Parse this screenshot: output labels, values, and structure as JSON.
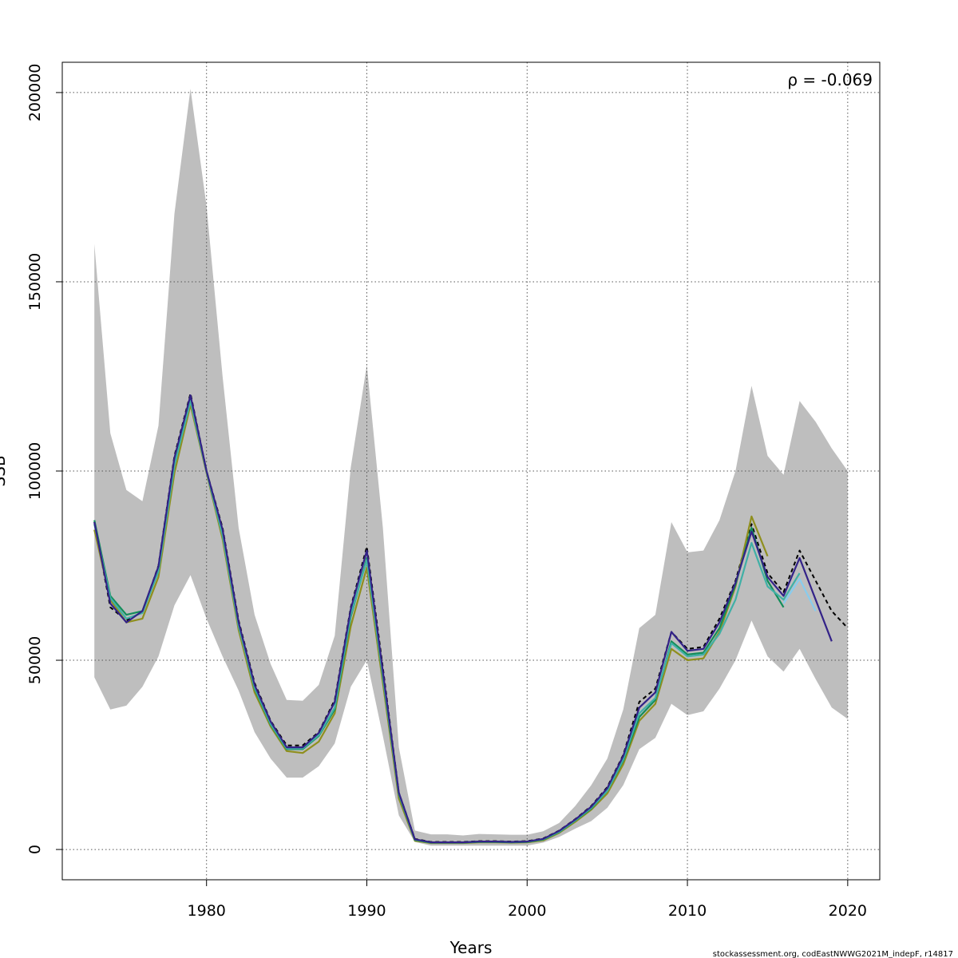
{
  "chart_data": {
    "type": "line",
    "xlabel": "Years",
    "ylabel": "SSB",
    "xlim": [
      1971,
      2022
    ],
    "ylim": [
      -8000,
      208000
    ],
    "x_ticks": [
      1980,
      1990,
      2000,
      2010,
      2020
    ],
    "x_tick_labels": [
      "1980",
      "1990",
      "2000",
      "2010",
      "2020"
    ],
    "y_ticks": [
      0,
      50000,
      100000,
      150000,
      200000
    ],
    "y_tick_labels": [
      "0",
      "50000",
      "100000",
      "150000",
      "200000"
    ],
    "grid": true,
    "annotation": "ρ = -0.069",
    "annotation_placement": "top-right",
    "footer": "stockassessment.org, codEastNWWG2021M_indepF, r14817",
    "band": {
      "color": "#bebebe",
      "x": [
        1973,
        1974,
        1975,
        1976,
        1977,
        1978,
        1979,
        1980,
        1981,
        1982,
        1983,
        1984,
        1985,
        1986,
        1987,
        1988,
        1989,
        1990,
        1991,
        1992,
        1993,
        1994,
        1995,
        1996,
        1997,
        1998,
        1999,
        2000,
        2001,
        2002,
        2003,
        2004,
        2005,
        2006,
        2007,
        2008,
        2009,
        2010,
        2011,
        2012,
        2013,
        2014,
        2015,
        2016,
        2017,
        2018,
        2019,
        2020
      ],
      "upper": [
        160000,
        110000,
        95000,
        92000,
        112000,
        168000,
        201000,
        170000,
        125000,
        85000,
        62000,
        49000,
        39500,
        39300,
        43500,
        56500,
        101000,
        128000,
        85000,
        27000,
        5000,
        4000,
        4000,
        3700,
        4100,
        4000,
        3900,
        3900,
        4800,
        7000,
        11500,
        17000,
        24000,
        37000,
        58500,
        62000,
        86500,
        78500,
        79000,
        87000,
        100000,
        122500,
        104000,
        99000,
        118500,
        113000,
        106000,
        100000
      ],
      "lower": [
        45500,
        37000,
        38000,
        43000,
        51000,
        64500,
        72500,
        61000,
        51000,
        42000,
        31000,
        24000,
        19000,
        19000,
        22000,
        28000,
        43000,
        50000,
        30000,
        9000,
        2000,
        1000,
        1000,
        1000,
        1000,
        1000,
        1000,
        1000,
        1800,
        3300,
        5500,
        7500,
        11000,
        17000,
        26500,
        29500,
        38500,
        35500,
        36500,
        42500,
        50000,
        60500,
        51000,
        47000,
        53000,
        45000,
        37500,
        34500
      ]
    },
    "series": [
      {
        "color": "#000000",
        "dashed": true,
        "x": [
          1973,
          1974,
          1975,
          1976,
          1977,
          1978,
          1979,
          1980,
          1981,
          1982,
          1983,
          1984,
          1985,
          1986,
          1987,
          1988,
          1989,
          1990,
          1991,
          1992,
          1993,
          1994,
          1995,
          1996,
          1997,
          1998,
          1999,
          2000,
          2001,
          2002,
          2003,
          2004,
          2005,
          2006,
          2007,
          2008,
          2009,
          2010,
          2011,
          2012,
          2013,
          2014,
          2015,
          2016,
          2017,
          2018,
          2019,
          2020
        ],
        "y": [
          86500,
          64000,
          60500,
          62800,
          75000,
          104000,
          120500,
          100000,
          85000,
          60500,
          44000,
          34000,
          27500,
          27500,
          31000,
          39500,
          64000,
          80000,
          48000,
          15000,
          2800,
          2000,
          2000,
          2000,
          2200,
          2200,
          2100,
          2200,
          2900,
          5000,
          8000,
          11500,
          16500,
          25000,
          39000,
          42500,
          57500,
          53000,
          53500,
          61000,
          71000,
          86000,
          73000,
          68000,
          79000,
          71000,
          63000,
          58500
        ]
      },
      {
        "color": "#8f8f1e",
        "dashed": false,
        "x": [
          1973,
          1974,
          1975,
          1976,
          1977,
          1978,
          1979,
          1980,
          1981,
          1982,
          1983,
          1984,
          1985,
          1986,
          1987,
          1988,
          1989,
          1990,
          1991,
          1992,
          1993,
          1994,
          1995,
          1996,
          1997,
          1998,
          1999,
          2000,
          2001,
          2002,
          2003,
          2004,
          2005,
          2006,
          2007,
          2008,
          2009,
          2010,
          2011,
          2012,
          2013,
          2014,
          2015
        ],
        "y": [
          84500,
          66000,
          60000,
          61000,
          72000,
          99500,
          117500,
          99500,
          82000,
          58000,
          41500,
          32500,
          26000,
          25500,
          28500,
          36000,
          59000,
          74500,
          44000,
          13500,
          2300,
          1700,
          1700,
          1700,
          1900,
          1900,
          1800,
          1900,
          2400,
          4400,
          7300,
          10500,
          14800,
          22500,
          34000,
          38500,
          53000,
          50000,
          50500,
          57500,
          69500,
          88000,
          77500
        ]
      },
      {
        "color": "#138d5a",
        "dashed": false,
        "x": [
          1973,
          1974,
          1975,
          1976,
          1977,
          1978,
          1979,
          1980,
          1981,
          1982,
          1983,
          1984,
          1985,
          1986,
          1987,
          1988,
          1989,
          1990,
          1991,
          1992,
          1993,
          1994,
          1995,
          1996,
          1997,
          1998,
          1999,
          2000,
          2001,
          2002,
          2003,
          2004,
          2005,
          2006,
          2007,
          2008,
          2009,
          2010,
          2011,
          2012,
          2013,
          2014,
          2015,
          2016
        ],
        "y": [
          87000,
          67000,
          62000,
          63000,
          74500,
          102500,
          119000,
          100000,
          83500,
          59500,
          42500,
          33000,
          26500,
          26500,
          30000,
          37000,
          61500,
          77000,
          45500,
          14500,
          2500,
          1800,
          1800,
          1800,
          2000,
          2000,
          1900,
          2000,
          2600,
          4600,
          7600,
          10800,
          15500,
          23500,
          35000,
          39500,
          55000,
          51500,
          52000,
          58500,
          70000,
          85000,
          71000,
          64000
        ]
      },
      {
        "color": "#40b0a6",
        "dashed": false,
        "x": [
          1973,
          1974,
          1975,
          1976,
          1977,
          1978,
          1979,
          1980,
          1981,
          1982,
          1983,
          1984,
          1985,
          1986,
          1987,
          1988,
          1989,
          1990,
          1991,
          1992,
          1993,
          1994,
          1995,
          1996,
          1997,
          1998,
          1999,
          2000,
          2001,
          2002,
          2003,
          2004,
          2005,
          2006,
          2007,
          2008,
          2009,
          2010,
          2011,
          2012,
          2013,
          2014,
          2015,
          2016,
          2017
        ],
        "y": [
          86000,
          66500,
          61000,
          62500,
          73500,
          101500,
          118500,
          99800,
          83000,
          59000,
          42800,
          33200,
          26700,
          26700,
          30200,
          37500,
          62000,
          76500,
          45800,
          14700,
          2600,
          1900,
          1900,
          1900,
          2100,
          2100,
          2000,
          2100,
          2700,
          4700,
          7700,
          11000,
          15500,
          23800,
          36000,
          40000,
          54500,
          51000,
          51500,
          57000,
          66000,
          81000,
          69500,
          66000,
          73000
        ]
      },
      {
        "color": "#332288",
        "dashed": false,
        "x": [
          1973,
          1974,
          1975,
          1976,
          1977,
          1978,
          1979,
          1980,
          1981,
          1982,
          1983,
          1984,
          1985,
          1986,
          1987,
          1988,
          1989,
          1990,
          1991,
          1992,
          1993,
          1994,
          1995,
          1996,
          1997,
          1998,
          1999,
          2000,
          2001,
          2002,
          2003,
          2004,
          2005,
          2006,
          2007,
          2008,
          2009,
          2010,
          2011,
          2012,
          2013,
          2014,
          2015,
          2016,
          2017,
          2018,
          2019
        ],
        "y": [
          86500,
          65000,
          60000,
          63000,
          74800,
          103500,
          120000,
          100000,
          84500,
          60000,
          43500,
          33800,
          27000,
          27000,
          30800,
          39000,
          63500,
          79000,
          47000,
          15000,
          2700,
          1900,
          1900,
          1900,
          2100,
          2100,
          2000,
          2100,
          2800,
          4900,
          7900,
          11300,
          16200,
          24700,
          37500,
          41500,
          57500,
          52500,
          53000,
          60000,
          70500,
          84000,
          72000,
          67000,
          77000,
          66000,
          55000
        ]
      },
      {
        "color": "#88ccee",
        "dashed": false,
        "x": [
          2016,
          2017,
          2018
        ],
        "y": [
          65000,
          71500,
          63000
        ]
      }
    ]
  }
}
